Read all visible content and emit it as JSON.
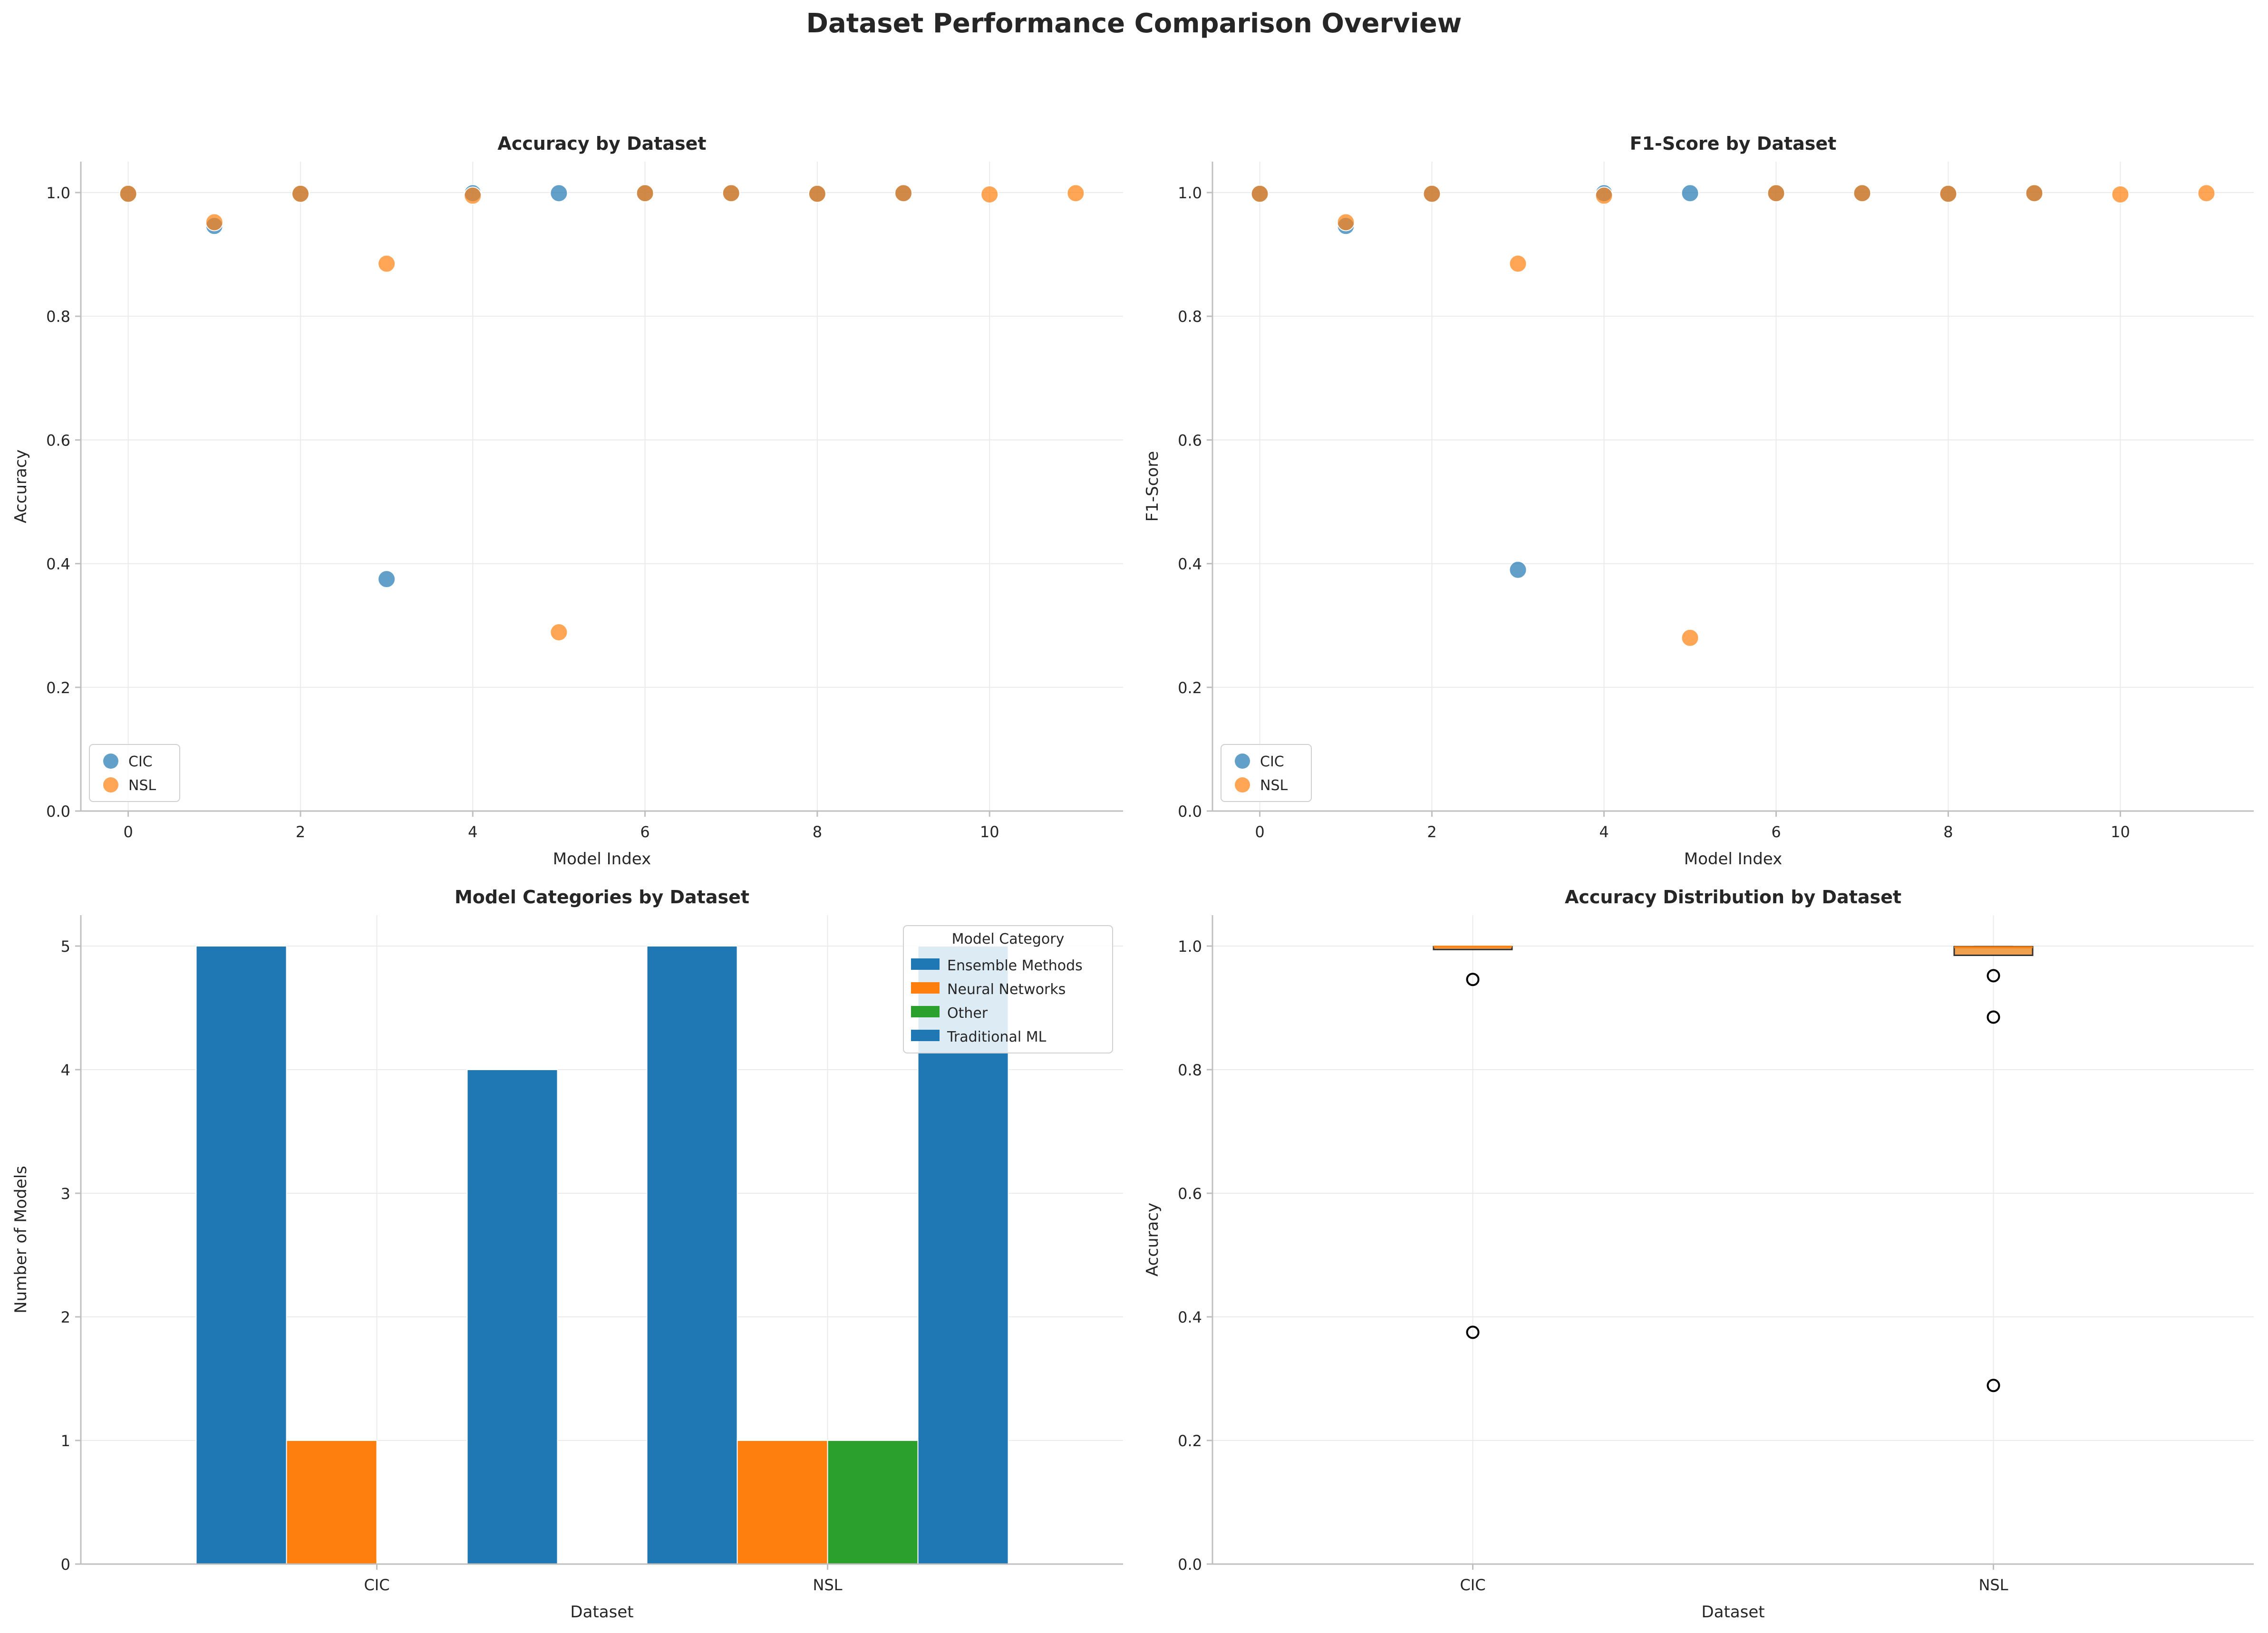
{
  "figure": {
    "title": "Dataset Performance Comparison Overview"
  },
  "colors": {
    "cic": "#1f77b4",
    "nsl": "#ff7f0e",
    "ensemble": "#1f77b4",
    "neural": "#ff7f0e",
    "other": "#2ca02c",
    "traditional": "#1f77b4",
    "grid": "#ebebeb",
    "axis": "#bfbfbf",
    "box_fill": "#f0a04f"
  },
  "chart_data": [
    {
      "id": "accuracy",
      "type": "scatter",
      "title": "Accuracy by Dataset",
      "xlabel": "Model Index",
      "ylabel": "Accuracy",
      "xlim": [
        -0.55,
        11.55
      ],
      "ylim": [
        0,
        1.05
      ],
      "xticks": [
        "0",
        "2",
        "4",
        "6",
        "8",
        "10"
      ],
      "yticks": [
        "0.0",
        "0.2",
        "0.4",
        "0.6",
        "0.8",
        "1.0"
      ],
      "grid": true,
      "legend": {
        "placement": "lower-left",
        "entries": [
          "CIC",
          "NSL"
        ]
      },
      "series": [
        {
          "name": "CIC",
          "color_key": "cic",
          "points": [
            [
              0,
              0.998
            ],
            [
              1,
              0.946
            ],
            [
              2,
              0.998
            ],
            [
              3,
              0.375
            ],
            [
              4,
              0.999
            ],
            [
              5,
              0.999
            ],
            [
              6,
              0.999
            ],
            [
              7,
              0.999
            ],
            [
              8,
              0.998
            ],
            [
              9,
              0.999
            ]
          ]
        },
        {
          "name": "NSL",
          "color_key": "nsl",
          "points": [
            [
              0,
              0.998
            ],
            [
              1,
              0.952
            ],
            [
              2,
              0.998
            ],
            [
              3,
              0.885
            ],
            [
              4,
              0.995
            ],
            [
              5,
              0.289
            ],
            [
              6,
              0.999
            ],
            [
              7,
              0.999
            ],
            [
              8,
              0.998
            ],
            [
              9,
              0.999
            ],
            [
              10,
              0.997
            ],
            [
              11,
              0.999
            ]
          ]
        }
      ]
    },
    {
      "id": "f1",
      "type": "scatter",
      "title": "F1-Score by Dataset",
      "xlabel": "Model Index",
      "ylabel": "F1-Score",
      "xlim": [
        -0.55,
        11.55
      ],
      "ylim": [
        0,
        1.05
      ],
      "xticks": [
        "0",
        "2",
        "4",
        "6",
        "8",
        "10"
      ],
      "yticks": [
        "0.0",
        "0.2",
        "0.4",
        "0.6",
        "0.8",
        "1.0"
      ],
      "grid": true,
      "legend": {
        "placement": "lower-left",
        "entries": [
          "CIC",
          "NSL"
        ]
      },
      "series": [
        {
          "name": "CIC",
          "color_key": "cic",
          "points": [
            [
              0,
              0.998
            ],
            [
              1,
              0.946
            ],
            [
              2,
              0.998
            ],
            [
              3,
              0.39
            ],
            [
              4,
              0.999
            ],
            [
              5,
              0.999
            ],
            [
              6,
              0.999
            ],
            [
              7,
              0.999
            ],
            [
              8,
              0.998
            ],
            [
              9,
              0.999
            ]
          ]
        },
        {
          "name": "NSL",
          "color_key": "nsl",
          "points": [
            [
              0,
              0.998
            ],
            [
              1,
              0.952
            ],
            [
              2,
              0.998
            ],
            [
              3,
              0.885
            ],
            [
              4,
              0.995
            ],
            [
              5,
              0.28
            ],
            [
              6,
              0.999
            ],
            [
              7,
              0.999
            ],
            [
              8,
              0.998
            ],
            [
              9,
              0.999
            ],
            [
              10,
              0.997
            ],
            [
              11,
              0.999
            ]
          ]
        }
      ]
    },
    {
      "id": "categories",
      "type": "bar",
      "title": "Model Categories by Dataset",
      "xlabel": "Dataset",
      "ylabel": "Number of Models",
      "categories": [
        "CIC",
        "NSL"
      ],
      "ylim": [
        0,
        5.25
      ],
      "yticks": [
        "0",
        "1",
        "2",
        "3",
        "4",
        "5"
      ],
      "grid": true,
      "legend": {
        "placement": "top-right",
        "title": "Model Category",
        "entries": [
          "Ensemble Methods",
          "Neural Networks",
          "Other",
          "Traditional ML"
        ]
      },
      "series": [
        {
          "name": "Ensemble Methods",
          "color_key": "ensemble",
          "values": [
            5,
            5
          ]
        },
        {
          "name": "Neural Networks",
          "color_key": "neural",
          "values": [
            1,
            1
          ]
        },
        {
          "name": "Other",
          "color_key": "other",
          "values": [
            0,
            1
          ]
        },
        {
          "name": "Traditional ML",
          "color_key": "traditional",
          "values": [
            4,
            5
          ]
        }
      ]
    },
    {
      "id": "distribution",
      "type": "box",
      "title": "Accuracy Distribution by Dataset",
      "xlabel": "Dataset",
      "ylabel": "Accuracy",
      "categories": [
        "CIC",
        "NSL"
      ],
      "ylim": [
        0,
        1.05
      ],
      "yticks": [
        "0.0",
        "0.2",
        "0.4",
        "0.6",
        "0.8",
        "1.0"
      ],
      "grid": true,
      "boxes": [
        {
          "name": "CIC",
          "q1": 0.998,
          "median": 0.999,
          "q3": 0.999,
          "whisker_low": 0.998,
          "whisker_high": 0.999,
          "outliers": [
            0.946,
            0.375
          ]
        },
        {
          "name": "NSL",
          "q1": 0.985,
          "median": 0.998,
          "q3": 0.999,
          "whisker_low": 0.985,
          "whisker_high": 0.999,
          "outliers": [
            0.952,
            0.885,
            0.289
          ]
        }
      ]
    }
  ]
}
